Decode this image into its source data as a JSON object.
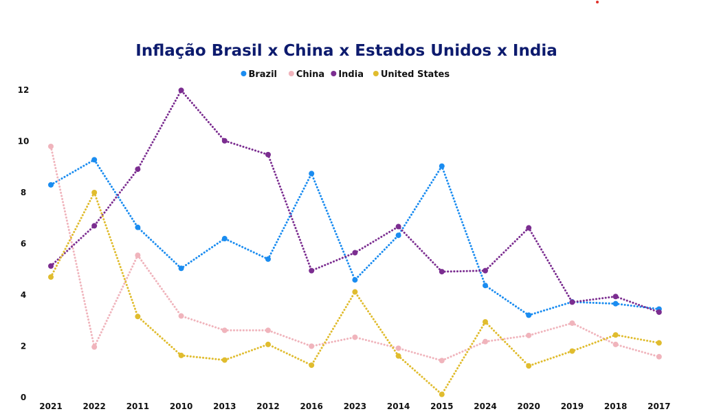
{
  "chart_data": {
    "type": "line",
    "title": "Inflação Brasil x China x Estados Unidos x India",
    "xlabel": "",
    "ylabel": "",
    "categories": [
      "2021",
      "2022",
      "2011",
      "2010",
      "2013",
      "2012",
      "2016",
      "2023",
      "2014",
      "2015",
      "2024",
      "2020",
      "2019",
      "2018",
      "2017"
    ],
    "ylim": [
      0,
      12
    ],
    "yticks": [
      0,
      2,
      4,
      6,
      8,
      10,
      12
    ],
    "grid": false,
    "legend_position": "top-center",
    "line_style": "dotted",
    "series": [
      {
        "name": "Brazil",
        "color": "#1a8cf0",
        "values": [
          8.3,
          9.28,
          6.64,
          5.04,
          6.2,
          5.4,
          8.74,
          4.59,
          6.33,
          9.03,
          4.37,
          3.21,
          3.73,
          3.66,
          3.45
        ]
      },
      {
        "name": "China",
        "color": "#f0b4bc",
        "values": [
          9.8,
          1.97,
          5.55,
          3.18,
          2.62,
          2.62,
          2.0,
          2.35,
          1.92,
          1.44,
          2.18,
          2.42,
          2.9,
          2.07,
          1.59
        ]
      },
      {
        "name": "India",
        "color": "#7b2d90",
        "values": [
          5.13,
          6.7,
          8.91,
          11.99,
          10.02,
          9.48,
          4.95,
          5.65,
          6.67,
          4.91,
          4.95,
          6.62,
          3.72,
          3.94,
          3.33
        ]
      },
      {
        "name": "United States",
        "color": "#e0bc2e",
        "values": [
          4.7,
          8.0,
          3.16,
          1.64,
          1.46,
          2.07,
          1.26,
          4.12,
          1.62,
          0.12,
          2.95,
          1.23,
          1.81,
          2.44,
          2.13
        ]
      }
    ]
  }
}
